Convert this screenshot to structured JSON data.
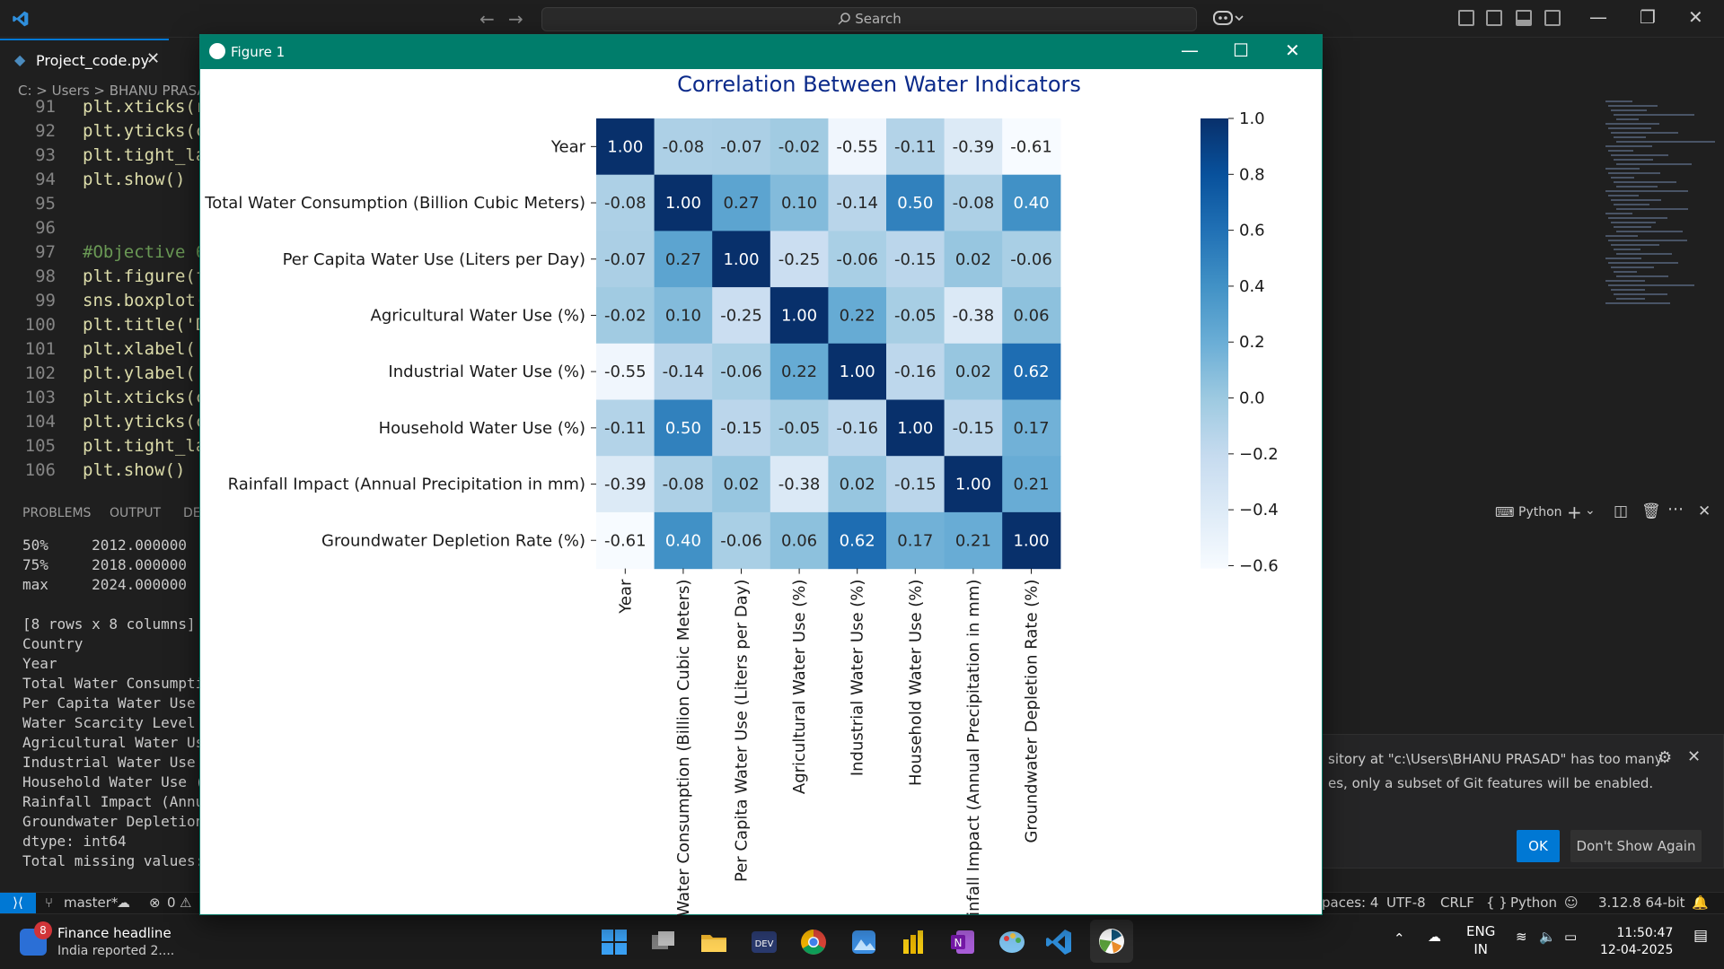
{
  "titlebar": {
    "search_label": "Search",
    "minimize_symbol": "—",
    "restore_symbol": "❐",
    "close_symbol": "✕"
  },
  "editor": {
    "tab_label": "Project_code.py",
    "tab_close": "✕",
    "breadcrumb": "C: > Users > BHANU PRASA",
    "lines": [
      {
        "num": "91",
        "text": "plt.xticks(r"
      },
      {
        "num": "92",
        "text": "plt.yticks(c"
      },
      {
        "num": "93",
        "text": "plt.tight_la"
      },
      {
        "num": "94",
        "text": "plt.show()"
      },
      {
        "num": "95",
        "text": ""
      },
      {
        "num": "96",
        "text": ""
      },
      {
        "num": "97",
        "text": "#Objective 6"
      },
      {
        "num": "98",
        "text": "plt.figure(f"
      },
      {
        "num": "99",
        "text": "sns.boxplot("
      },
      {
        "num": "100",
        "text": "plt.title('D"
      },
      {
        "num": "101",
        "text": "plt.xlabel('"
      },
      {
        "num": "102",
        "text": "plt.ylabel('"
      },
      {
        "num": "103",
        "text": "plt.xticks(c"
      },
      {
        "num": "104",
        "text": "plt.yticks(c"
      },
      {
        "num": "105",
        "text": "plt.tight_la"
      },
      {
        "num": "106",
        "text": "plt.show()"
      }
    ]
  },
  "panel": {
    "tabs": [
      "PROBLEMS",
      "OUTPUT",
      "DE"
    ],
    "terminal_lines": [
      "50%     2012.000000",
      "75%     2018.000000",
      "max     2024.000000",
      "",
      "[8 rows x 8 columns]",
      "Country",
      "Year",
      "Total Water Consumptio",
      "Per Capita Water Use (",
      "Water Scarcity Level",
      "Agricultural Water Use",
      "Industrial Water Use (",
      "Household Water Use (%",
      "Rainfall Impact (Annua",
      "Groundwater Depletion",
      "dtype: int64",
      "Total missing values:"
    ],
    "right_header": "Python"
  },
  "notification": {
    "line1": "sitory at \"c:\\Users\\BHANU PRASAD\" has too many",
    "line2": "es, only a subset of Git features will be enabled.",
    "ok_label": "OK",
    "dont_show_label": "Don't Show Again"
  },
  "statusbar": {
    "branch": "master*",
    "problems": "0",
    "spaces": "paces: 4",
    "encoding": "UTF-8",
    "eol": "CRLF",
    "language": "Python",
    "interpreter": "3.12.8 64-bit"
  },
  "taskbar": {
    "news_badge": "8",
    "news_title": "Finance headline",
    "news_sub": "India reported 2....",
    "lang_top": "ENG",
    "lang_bottom": "IN",
    "time": "11:50:47",
    "date": "12-04-2025"
  },
  "figure": {
    "window_title": "Figure 1",
    "minimize_symbol": "—",
    "maximize_symbol": "☐",
    "close_symbol": "✕"
  },
  "chart_data": {
    "type": "heatmap",
    "title": "Correlation Between Water Indicators",
    "row_labels": [
      "Year",
      "Total Water Consumption (Billion Cubic Meters)",
      "Per Capita Water Use (Liters per Day)",
      "Agricultural Water Use (%)",
      "Industrial Water Use (%)",
      "Household Water Use (%)",
      "Rainfall Impact (Annual Precipitation in mm)",
      "Groundwater Depletion Rate (%)"
    ],
    "col_labels": [
      "Year",
      "Total Water Consumption (Billion Cubic Meters)",
      "Per Capita Water Use (Liters per Day)",
      "Agricultural Water Use (%)",
      "Industrial Water Use (%)",
      "Household Water Use (%)",
      "Rainfall Impact (Annual Precipitation in mm)",
      "Groundwater Depletion Rate (%)"
    ],
    "values": [
      [
        1.0,
        -0.08,
        -0.07,
        -0.02,
        -0.55,
        -0.11,
        -0.39,
        -0.61
      ],
      [
        -0.08,
        1.0,
        0.27,
        0.1,
        -0.14,
        0.5,
        -0.08,
        0.4
      ],
      [
        -0.07,
        0.27,
        1.0,
        -0.25,
        -0.06,
        -0.15,
        0.02,
        -0.06
      ],
      [
        -0.02,
        0.1,
        -0.25,
        1.0,
        0.22,
        -0.05,
        -0.38,
        0.06
      ],
      [
        -0.55,
        -0.14,
        -0.06,
        0.22,
        1.0,
        -0.16,
        0.02,
        0.62
      ],
      [
        -0.11,
        0.5,
        -0.15,
        -0.05,
        -0.16,
        1.0,
        -0.15,
        0.17
      ],
      [
        -0.39,
        -0.08,
        0.02,
        -0.38,
        0.02,
        -0.15,
        1.0,
        0.21
      ],
      [
        -0.61,
        0.4,
        -0.06,
        0.06,
        0.62,
        0.17,
        0.21,
        1.0
      ]
    ],
    "colormap": "Blues",
    "color_min": -0.61,
    "color_max": 1.0,
    "colorbar_ticks": [
      1.0,
      0.8,
      0.6,
      0.4,
      0.2,
      0.0,
      -0.2,
      -0.4,
      -0.6
    ],
    "colorbar_tick_labels": [
      "1.0",
      "0.8",
      "0.6",
      "0.4",
      "0.2",
      "0.0",
      "−0.2",
      "−0.4",
      "−0.6"
    ],
    "annotation_format": "0.00",
    "grid": false
  }
}
